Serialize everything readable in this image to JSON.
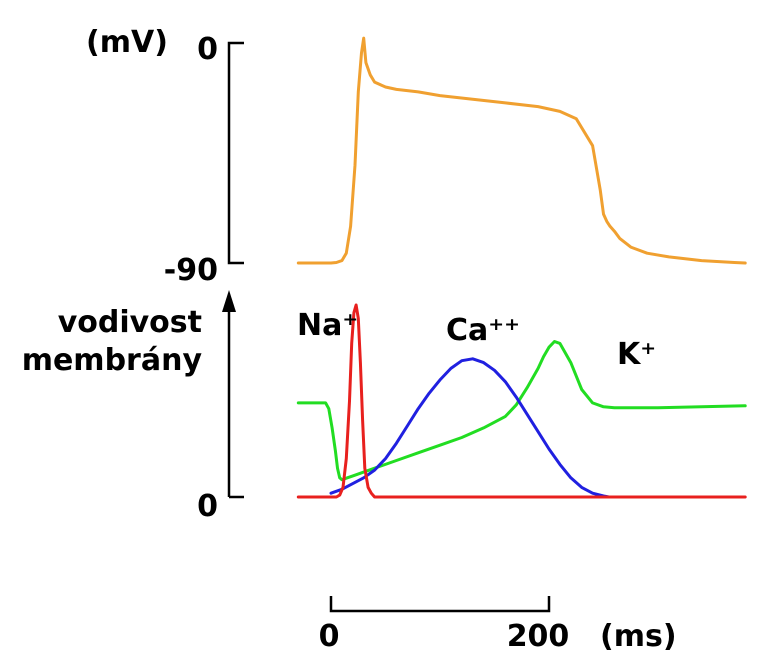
{
  "chart_data": [
    {
      "type": "line",
      "title": "",
      "ylabel": "(mV)",
      "y_ticks": [
        "0",
        "-90"
      ],
      "ylim": [
        -90,
        0
      ],
      "series": [
        {
          "color": "#f0a030",
          "x": [
            -30,
            0,
            5,
            10,
            14,
            18,
            22,
            25,
            28,
            30,
            32,
            36,
            40,
            50,
            60,
            80,
            100,
            130,
            160,
            190,
            210,
            225,
            240,
            247,
            250,
            253,
            256,
            260,
            265,
            275,
            290,
            310,
            340,
            370,
            380
          ],
          "y": [
            -90,
            -90,
            -89.8,
            -89,
            -86,
            -75,
            -50,
            -20,
            -4,
            2,
            -8,
            -13,
            -16,
            -18,
            -19,
            -20,
            -21.5,
            -23,
            -24.5,
            -26,
            -28,
            -31,
            -42,
            -60,
            -70,
            -73,
            -75,
            -77,
            -80,
            -83.5,
            -86,
            -87.5,
            -89,
            -89.8,
            -90
          ]
        }
      ]
    },
    {
      "type": "line",
      "title": "",
      "ylabel_lines": [
        "vodivost",
        "membrány"
      ],
      "y_ticks": [
        "0"
      ],
      "xlabel": "(ms)",
      "x_ticks": [
        "0",
        "200"
      ],
      "ylim": [
        0,
        1
      ],
      "series": [
        {
          "name": "Na⁺",
          "color": "#e8201e",
          "x": [
            -30,
            5,
            8,
            11,
            14,
            17,
            19,
            21,
            23,
            25,
            27,
            29,
            31,
            34,
            37,
            40,
            50,
            60,
            100,
            200,
            300,
            380
          ],
          "y": [
            0,
            0,
            0.01,
            0.05,
            0.2,
            0.5,
            0.8,
            0.96,
            1.0,
            0.93,
            0.7,
            0.4,
            0.15,
            0.05,
            0.02,
            0,
            0,
            0,
            0,
            0,
            0,
            0
          ]
        },
        {
          "name": "Ca⁺⁺",
          "color": "#2020e0",
          "x": [
            0,
            10,
            20,
            30,
            40,
            50,
            60,
            70,
            80,
            90,
            100,
            110,
            120,
            130,
            140,
            150,
            160,
            170,
            180,
            190,
            200,
            210,
            220,
            230,
            240,
            250,
            255
          ],
          "y": [
            0.02,
            0.04,
            0.07,
            0.1,
            0.14,
            0.2,
            0.28,
            0.37,
            0.46,
            0.54,
            0.61,
            0.67,
            0.71,
            0.72,
            0.7,
            0.66,
            0.6,
            0.52,
            0.43,
            0.34,
            0.25,
            0.17,
            0.1,
            0.05,
            0.02,
            0.005,
            0
          ]
        },
        {
          "name": "K⁺",
          "color": "#22dd22",
          "x": [
            -30,
            -10,
            -5,
            -2,
            1,
            4,
            6,
            8,
            10,
            20,
            40,
            60,
            80,
            100,
            120,
            140,
            160,
            170,
            180,
            190,
            195,
            200,
            205,
            210,
            220,
            230,
            240,
            250,
            260,
            300,
            340,
            380
          ],
          "y": [
            0.49,
            0.49,
            0.49,
            0.46,
            0.36,
            0.24,
            0.15,
            0.1,
            0.09,
            0.11,
            0.15,
            0.19,
            0.23,
            0.27,
            0.31,
            0.36,
            0.42,
            0.48,
            0.57,
            0.67,
            0.73,
            0.78,
            0.81,
            0.8,
            0.7,
            0.56,
            0.49,
            0.47,
            0.465,
            0.465,
            0.47,
            0.475
          ]
        }
      ]
    }
  ]
}
